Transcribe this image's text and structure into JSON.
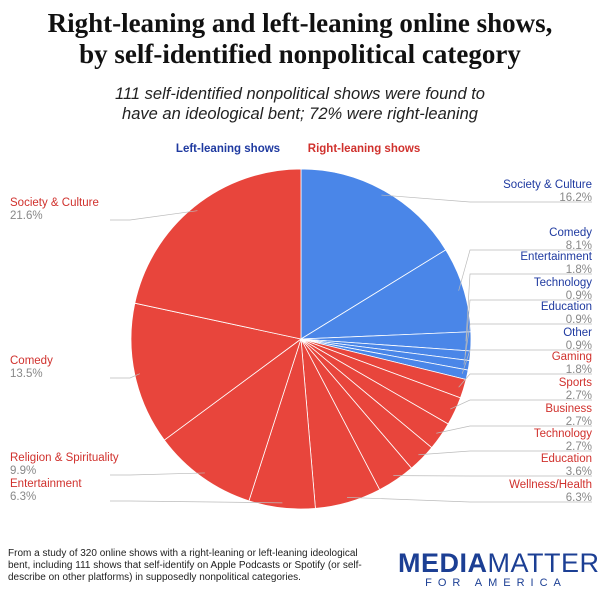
{
  "chart_data": {
    "type": "pie",
    "title": "Right-leaning and left-leaning online shows, by self-identified nonpolitical category",
    "subtitle": "111 self-identified nonpolitical shows were found to have an ideological bent; 72% were right-leaning",
    "legend": [
      {
        "name": "Left-leaning shows",
        "color": "#4a86e8"
      },
      {
        "name": "Right-leaning shows",
        "color": "#e8453c"
      }
    ],
    "categories": [
      "Society & Culture",
      "Comedy",
      "Entertainment",
      "Technology",
      "Education",
      "Other",
      "Gaming",
      "Sports",
      "Business",
      "Technology",
      "Education",
      "Wellness/Health",
      "Entertainment",
      "Religion & Spirituality",
      "Comedy",
      "Society & Culture"
    ],
    "values": [
      16.2,
      8.1,
      1.8,
      0.9,
      0.9,
      0.9,
      1.8,
      2.7,
      2.7,
      2.7,
      3.6,
      6.3,
      6.3,
      9.9,
      13.5,
      21.6
    ],
    "value_labels": [
      "16.2%",
      "8.1%",
      "1.8%",
      "0.9%",
      "0.9%",
      "0.9%",
      "1.8%",
      "2.7%",
      "2.7%",
      "2.7%",
      "3.6%",
      "6.3%",
      "6.3%",
      "9.9%",
      "13.5%",
      "21.6%"
    ],
    "colors": [
      "#4a86e8",
      "#4a86e8",
      "#4a86e8",
      "#4a86e8",
      "#4a86e8",
      "#4a86e8",
      "#e8453c",
      "#e8453c",
      "#e8453c",
      "#e8453c",
      "#e8453c",
      "#e8453c",
      "#e8453c",
      "#e8453c",
      "#e8453c",
      "#e8453c"
    ]
  },
  "footnote": "From a study of 320 online shows with a right-leaning or left-leaning ideological bent, including 111 shows that self-identify on Apple Podcasts or Spotify (or self-describe on other platforms) in supposedly nonpolitical categories.",
  "logo": {
    "media": "MEDIA",
    "matters": "MATTERS",
    "tagline": "FOR AMERICA"
  }
}
